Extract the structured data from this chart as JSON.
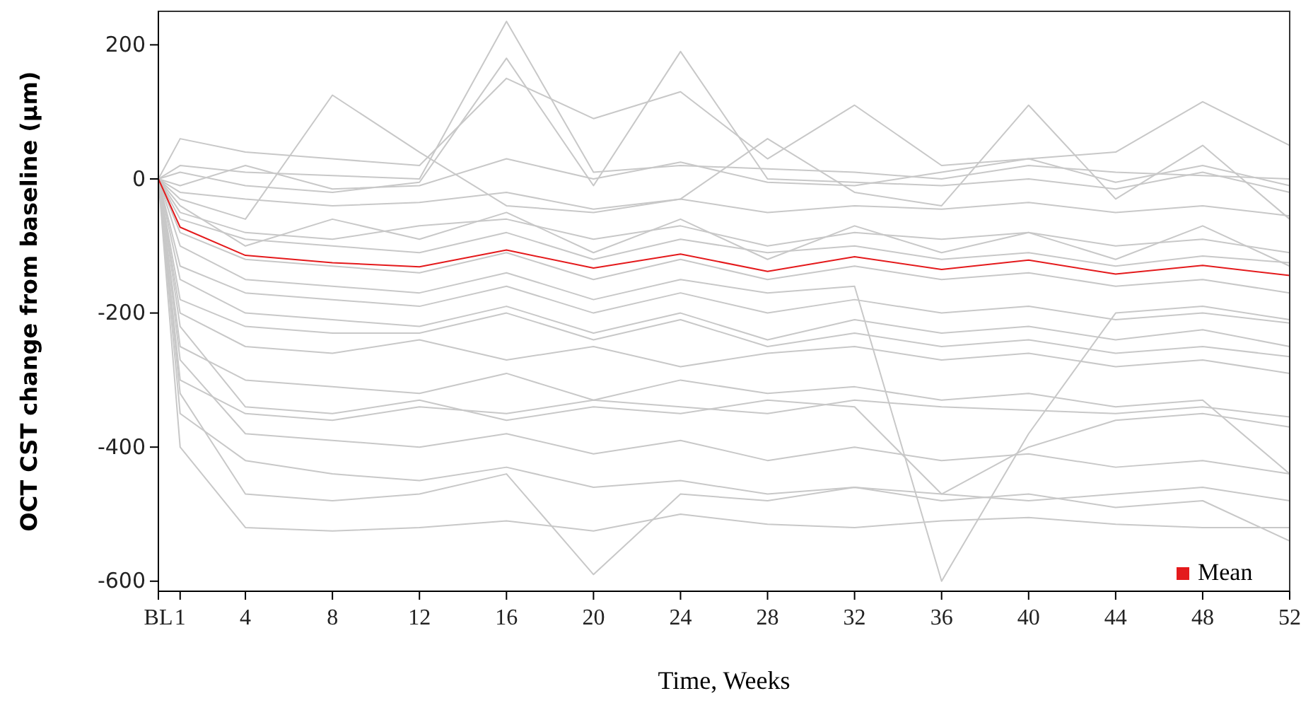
{
  "chart_data": {
    "type": "line",
    "xlabel": "Time, Weeks",
    "ylabel": "OCT CST change from baseline (μm)",
    "x": [
      0,
      1,
      4,
      8,
      12,
      16,
      20,
      24,
      28,
      32,
      36,
      40,
      44,
      48,
      52
    ],
    "xlim": [
      0,
      52
    ],
    "xticks": [
      {
        "value": 0,
        "label": "BL"
      },
      1,
      4,
      8,
      12,
      16,
      20,
      24,
      28,
      32,
      36,
      40,
      44,
      48,
      52
    ],
    "ylim": [
      -615,
      250
    ],
    "yticks": [
      -600,
      -400,
      -200,
      0,
      200
    ],
    "grid": false,
    "legend": "bottom right",
    "marker": "none",
    "line_style": "solid",
    "series": [
      {
        "color": "#c8c8c8",
        "values": [
          0,
          -20,
          -30,
          -40,
          -35,
          -20,
          -45,
          -30,
          -50,
          -40,
          -45,
          -35,
          -50,
          -40,
          -55
        ]
      },
      {
        "color": "#c8c8c8",
        "values": [
          0,
          -60,
          -90,
          -100,
          -110,
          -80,
          -120,
          -90,
          -110,
          -100,
          -120,
          -110,
          -130,
          -115,
          -125
        ]
      },
      {
        "color": "#c8c8c8",
        "values": [
          0,
          -150,
          -200,
          -210,
          -220,
          -190,
          -230,
          -200,
          -240,
          -210,
          -230,
          -220,
          -240,
          -225,
          -250
        ]
      },
      {
        "color": "#c8c8c8",
        "values": [
          0,
          -300,
          -350,
          -360,
          -340,
          -350,
          -330,
          -340,
          -350,
          -330,
          -340,
          -345,
          -350,
          -340,
          -355
        ]
      },
      {
        "color": "#c8c8c8",
        "values": [
          0,
          -400,
          -520,
          -525,
          -520,
          -510,
          -525,
          -500,
          -515,
          -520,
          -510,
          -505,
          -515,
          -520,
          -520
        ]
      },
      {
        "color": "#c8c8c8",
        "values": [
          0,
          -320,
          -470,
          -480,
          -470,
          -440,
          -590,
          -470,
          -480,
          -460,
          -470,
          -480,
          -470,
          -460,
          -480
        ]
      },
      {
        "color": "#c8c8c8",
        "values": [
          0,
          20,
          10,
          5,
          0,
          235,
          10,
          20,
          15,
          10,
          0,
          20,
          10,
          5,
          0
        ]
      },
      {
        "color": "#c8c8c8",
        "values": [
          0,
          10,
          -10,
          -20,
          -5,
          180,
          -10,
          190,
          0,
          -5,
          -10,
          0,
          -15,
          10,
          -20
        ]
      },
      {
        "color": "#c8c8c8",
        "values": [
          0,
          -30,
          -60,
          125,
          40,
          -40,
          -50,
          -30,
          60,
          -20,
          -40,
          110,
          -30,
          50,
          -60
        ]
      },
      {
        "color": "#c8c8c8",
        "values": [
          0,
          60,
          40,
          30,
          20,
          150,
          90,
          130,
          30,
          110,
          20,
          30,
          40,
          115,
          50
        ]
      },
      {
        "color": "#c8c8c8",
        "values": [
          0,
          -100,
          -150,
          -160,
          -170,
          -140,
          -180,
          -150,
          -170,
          -160,
          -600,
          -380,
          -200,
          -190,
          -210
        ]
      },
      {
        "color": "#c8c8c8",
        "values": [
          0,
          -250,
          -300,
          -310,
          -320,
          -290,
          -330,
          -300,
          -320,
          -310,
          -330,
          -320,
          -340,
          -330,
          -440
        ]
      },
      {
        "color": "#c8c8c8",
        "values": [
          0,
          -200,
          -250,
          -260,
          -240,
          -270,
          -250,
          -280,
          -260,
          -250,
          -270,
          -260,
          -280,
          -270,
          -290
        ]
      },
      {
        "color": "#c8c8c8",
        "values": [
          0,
          -50,
          -80,
          -90,
          -70,
          -60,
          -90,
          -70,
          -100,
          -80,
          -90,
          -80,
          -100,
          -90,
          -110
        ]
      },
      {
        "color": "#c8c8c8",
        "values": [
          0,
          -80,
          -120,
          -130,
          -140,
          -110,
          -150,
          -120,
          -150,
          -130,
          -150,
          -140,
          -160,
          -150,
          -170
        ]
      },
      {
        "color": "#c8c8c8",
        "values": [
          0,
          -350,
          -420,
          -440,
          -450,
          -430,
          -460,
          -450,
          -470,
          -460,
          -480,
          -470,
          -490,
          -480,
          -540
        ]
      },
      {
        "color": "#c8c8c8",
        "values": [
          0,
          -10,
          20,
          -15,
          -10,
          30,
          0,
          25,
          -5,
          -10,
          10,
          30,
          -5,
          20,
          -10
        ]
      },
      {
        "color": "#c8c8c8",
        "values": [
          0,
          -180,
          -220,
          -230,
          -230,
          -200,
          -240,
          -210,
          -250,
          -230,
          -250,
          -240,
          -260,
          -250,
          -265
        ]
      },
      {
        "color": "#c8c8c8",
        "values": [
          0,
          -270,
          -380,
          -390,
          -400,
          -380,
          -410,
          -390,
          -420,
          -400,
          -420,
          -410,
          -430,
          -420,
          -440
        ]
      },
      {
        "color": "#c8c8c8",
        "values": [
          0,
          -130,
          -170,
          -180,
          -190,
          -160,
          -200,
          -170,
          -200,
          -180,
          -200,
          -190,
          -210,
          -200,
          -215
        ]
      },
      {
        "color": "#c8c8c8",
        "values": [
          0,
          -40,
          -100,
          -60,
          -90,
          -50,
          -110,
          -60,
          -120,
          -70,
          -110,
          -80,
          -120,
          -70,
          -130
        ]
      },
      {
        "color": "#c8c8c8",
        "values": [
          0,
          -220,
          -340,
          -350,
          -330,
          -360,
          -340,
          -350,
          -330,
          -340,
          -470,
          -400,
          -360,
          -350,
          -370
        ]
      },
      {
        "name": "Mean",
        "color": "#e41a1c",
        "values": [
          0,
          -72,
          -114,
          -125,
          -131,
          -106,
          -133,
          -112,
          -138,
          -116,
          -135,
          -121,
          -142,
          -129,
          -144
        ]
      }
    ]
  }
}
